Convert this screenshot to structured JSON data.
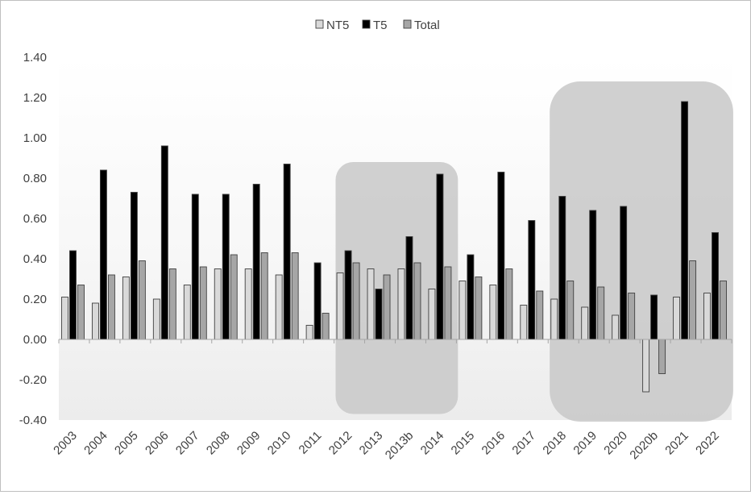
{
  "chart_data": {
    "type": "bar",
    "title": "",
    "xlabel": "",
    "ylabel": "",
    "ylim": [
      -0.4,
      1.4
    ],
    "yticks": [
      "1.40",
      "1.20",
      "1.00",
      "0.80",
      "0.60",
      "0.40",
      "0.20",
      "0.00",
      "-0.20",
      "-0.40"
    ],
    "grid": false,
    "legend_position": "top",
    "categories": [
      "2003",
      "2004",
      "2005",
      "2006",
      "2007",
      "2008",
      "2009",
      "2010",
      "2011",
      "2012",
      "2013",
      "2013b",
      "2014",
      "2015",
      "2016",
      "2017",
      "2018",
      "2019",
      "2020",
      "2020b",
      "2021",
      "2022"
    ],
    "series": [
      {
        "name": "NT5",
        "color": "#d9d9d9",
        "values": [
          0.21,
          0.18,
          0.31,
          0.2,
          0.27,
          0.35,
          0.35,
          0.32,
          0.07,
          0.33,
          0.35,
          0.35,
          0.25,
          0.29,
          0.27,
          0.17,
          0.2,
          0.16,
          0.12,
          -0.26,
          0.21,
          0.23
        ]
      },
      {
        "name": "T5",
        "color": "#000000",
        "values": [
          0.44,
          0.84,
          0.73,
          0.96,
          0.72,
          0.72,
          0.77,
          0.87,
          0.38,
          0.44,
          0.25,
          0.51,
          0.82,
          0.42,
          0.83,
          0.59,
          0.71,
          0.64,
          0.66,
          0.22,
          1.18,
          0.53
        ]
      },
      {
        "name": "Total",
        "color": "#a6a6a6",
        "values": [
          0.27,
          0.32,
          0.39,
          0.35,
          0.36,
          0.42,
          0.43,
          0.43,
          0.13,
          0.38,
          0.32,
          0.38,
          0.36,
          0.31,
          0.35,
          0.24,
          0.29,
          0.26,
          0.23,
          -0.17,
          0.39,
          0.29
        ]
      }
    ],
    "highlight_ranges": [
      {
        "from": "2012",
        "to": "2014"
      },
      {
        "from": "2018",
        "to": "2022"
      }
    ]
  }
}
